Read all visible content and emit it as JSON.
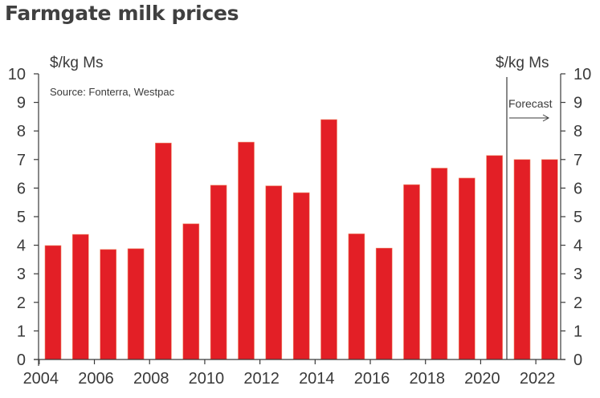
{
  "chart_data": {
    "type": "bar",
    "title": "Farmgate milk prices",
    "ylabel_left": "$/kg Ms",
    "ylabel_right": "$/kg Ms",
    "source": "Source: Fonterra, Westpac",
    "annotation": "Forecast",
    "forecast_start": 2021,
    "ylim": [
      0,
      10
    ],
    "yticks": [
      0,
      1,
      2,
      3,
      4,
      5,
      6,
      7,
      8,
      9,
      10
    ],
    "xtick_labels": [
      "2004",
      "2006",
      "2008",
      "2010",
      "2012",
      "2014",
      "2016",
      "2018",
      "2020",
      "2022"
    ],
    "categories": [
      "2004",
      "2005",
      "2006",
      "2007",
      "2008",
      "2009",
      "2010",
      "2011",
      "2012",
      "2013",
      "2014",
      "2015",
      "2016",
      "2017",
      "2018",
      "2019",
      "2020",
      "2021",
      "2022"
    ],
    "values": [
      3.99,
      4.38,
      3.85,
      3.88,
      7.58,
      4.75,
      6.1,
      7.61,
      6.08,
      5.84,
      8.4,
      4.4,
      3.9,
      6.12,
      6.7,
      6.35,
      7.14,
      7.0,
      7.0
    ],
    "bar_color": "#e31f26",
    "axis_color": "#3a3a3a",
    "grid": false,
    "legend": "none"
  }
}
